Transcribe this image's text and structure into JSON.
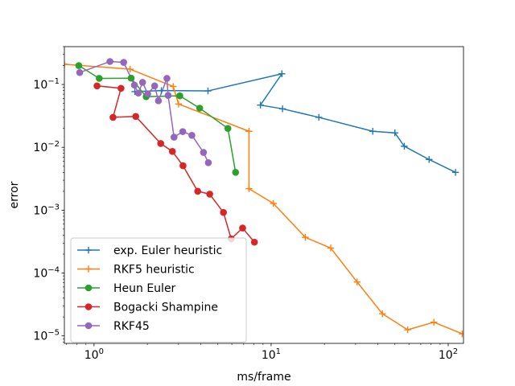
{
  "chart_data": {
    "type": "line",
    "title": "",
    "xlabel": "ms/frame",
    "ylabel": "error",
    "xscale": "log",
    "yscale": "log",
    "xlim": [
      0.68,
      122
    ],
    "ylim": [
      7.6e-06,
      0.4
    ],
    "grid": false,
    "legend_position": "lower-left",
    "x_ticks": [
      {
        "value": 1,
        "base": "10",
        "exp": "0"
      },
      {
        "value": 10,
        "base": "10",
        "exp": "1"
      },
      {
        "value": 100,
        "base": "10",
        "exp": "2"
      }
    ],
    "y_ticks": [
      {
        "value": 1e-05,
        "base": "10",
        "exp": "−5"
      },
      {
        "value": 0.0001,
        "base": "10",
        "exp": "−4"
      },
      {
        "value": 0.001,
        "base": "10",
        "exp": "−3"
      },
      {
        "value": 0.01,
        "base": "10",
        "exp": "−2"
      },
      {
        "value": 0.1,
        "base": "10",
        "exp": "−1"
      }
    ],
    "series": [
      {
        "name": "exp. Euler heuristic",
        "color": "#1f77b4",
        "marker": "plus",
        "points": [
          [
            1.7,
            0.077
          ],
          [
            2.4,
            0.08
          ],
          [
            4.4,
            0.079
          ],
          [
            11.5,
            0.148
          ],
          [
            8.7,
            0.047
          ],
          [
            11.6,
            0.041
          ],
          [
            18.6,
            0.03
          ],
          [
            37.5,
            0.018
          ],
          [
            50,
            0.017
          ],
          [
            56.5,
            0.0104
          ],
          [
            78,
            0.0064
          ],
          [
            110,
            0.004
          ]
        ]
      },
      {
        "name": "RKF5 heuristic",
        "color": "#ff7f0e",
        "marker": "plus",
        "points": [
          [
            0.68,
            0.21
          ],
          [
            1.6,
            0.175
          ],
          [
            2.8,
            0.093
          ],
          [
            3.0,
            0.049
          ],
          [
            7.5,
            0.018
          ],
          [
            7.5,
            0.0022
          ],
          [
            10.3,
            0.00128
          ],
          [
            15.6,
            0.00037
          ],
          [
            21.7,
            0.00025
          ],
          [
            30.6,
            7.2e-05
          ],
          [
            42.5,
            2.25e-05
          ],
          [
            59,
            1.25e-05
          ],
          [
            83,
            1.65e-05
          ],
          [
            120,
            1.08e-05
          ]
        ]
      },
      {
        "name": "Heun Euler",
        "color": "#2ca02c",
        "marker": "circle",
        "points": [
          [
            0.82,
            0.2
          ],
          [
            1.07,
            0.125
          ],
          [
            1.62,
            0.126
          ],
          [
            1.97,
            0.064
          ],
          [
            3.05,
            0.066
          ],
          [
            3.95,
            0.042
          ],
          [
            5.7,
            0.02
          ],
          [
            6.3,
            0.004
          ]
        ]
      },
      {
        "name": "Bogacki Shampine",
        "color": "#d62728",
        "marker": "circle",
        "points": [
          [
            1.04,
            0.095
          ],
          [
            1.42,
            0.087
          ],
          [
            1.28,
            0.03
          ],
          [
            1.72,
            0.031
          ],
          [
            2.38,
            0.0115
          ],
          [
            2.77,
            0.0086
          ],
          [
            3.18,
            0.0051
          ],
          [
            3.85,
            0.002
          ],
          [
            4.5,
            0.0018
          ],
          [
            5.38,
            0.00092
          ],
          [
            5.95,
            0.00035
          ],
          [
            6.9,
            0.00052
          ],
          [
            8.05,
            0.00031
          ]
        ]
      },
      {
        "name": "RKF45",
        "color": "#9467bd",
        "marker": "circle",
        "points": [
          [
            0.83,
            0.155
          ],
          [
            1.23,
            0.232
          ],
          [
            1.47,
            0.225
          ],
          [
            1.69,
            0.098
          ],
          [
            1.78,
            0.073
          ],
          [
            1.88,
            0.108
          ],
          [
            2.01,
            0.071
          ],
          [
            2.2,
            0.095
          ],
          [
            2.31,
            0.055
          ],
          [
            2.58,
            0.125
          ],
          [
            2.62,
            0.067
          ],
          [
            2.83,
            0.0145
          ],
          [
            3.17,
            0.0178
          ],
          [
            3.57,
            0.0155
          ],
          [
            4.15,
            0.0083
          ],
          [
            4.42,
            0.0057
          ]
        ]
      }
    ]
  }
}
